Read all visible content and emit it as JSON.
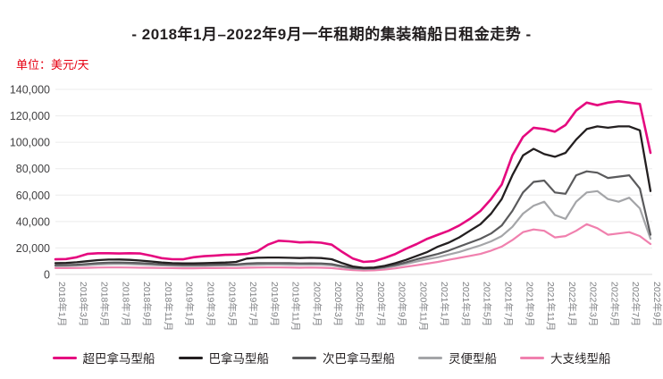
{
  "title": "- 2018年1月–2022年9月一年租期的集装箱船日租金走势 -",
  "unit_label": "单位：美元/天",
  "colors": {
    "accent_red": "#e60012",
    "title_text": "#231f20",
    "gridline": "#ebebeb",
    "axis_line": "#d9d9d9",
    "y_tick_text": "#414042",
    "x_tick_text": "#808285"
  },
  "legend": [
    "超巴拿马型船",
    "巴拿马型船",
    "次巴拿马型船",
    "灵便型船",
    "大支线型船"
  ],
  "chart_data": {
    "type": "line",
    "title": "- 2018年1月–2022年9月一年租期的集装箱船日租金走势 -",
    "ylabel": "单位：美元/天",
    "ylim": [
      0,
      140000
    ],
    "grid": true,
    "legend_position": "bottom",
    "y_ticks": [
      {
        "value": 0,
        "label": "0"
      },
      {
        "value": 20000,
        "label": "20,000"
      },
      {
        "value": 40000,
        "label": "40,000"
      },
      {
        "value": 60000,
        "label": "60,000"
      },
      {
        "value": 80000,
        "label": "80,000"
      },
      {
        "value": 100000,
        "label": "100,000"
      },
      {
        "value": 120000,
        "label": "120,000"
      },
      {
        "value": 140000,
        "label": "140,000"
      }
    ],
    "x": [
      "2018年1月",
      "2018年2月",
      "2018年3月",
      "2018年4月",
      "2018年5月",
      "2018年6月",
      "2018年7月",
      "2018年8月",
      "2018年9月",
      "2018年10月",
      "2018年11月",
      "2018年12月",
      "2019年1月",
      "2019年2月",
      "2019年3月",
      "2019年4月",
      "2019年5月",
      "2019年6月",
      "2019年7月",
      "2019年8月",
      "2019年9月",
      "2019年10月",
      "2019年11月",
      "2019年12月",
      "2020年1月",
      "2020年2月",
      "2020年3月",
      "2020年4月",
      "2020年5月",
      "2020年6月",
      "2020年7月",
      "2020年8月",
      "2020年9月",
      "2020年10月",
      "2020年11月",
      "2020年12月",
      "2021年1月",
      "2021年2月",
      "2021年3月",
      "2021年4月",
      "2021年5月",
      "2021年6月",
      "2021年7月",
      "2021年8月",
      "2021年9月",
      "2021年10月",
      "2021年11月",
      "2021年12月",
      "2022年1月",
      "2022年2月",
      "2022年3月",
      "2022年4月",
      "2022年5月",
      "2022年6月",
      "2022年7月",
      "2022年8月",
      "2022年9月"
    ],
    "x_tick_every": 2,
    "series": [
      {
        "name": "超巴拿马型船",
        "color": "#e5097f",
        "width": 2.6,
        "values": [
          11400,
          11600,
          13000,
          15500,
          16000,
          16000,
          15800,
          16000,
          15800,
          14200,
          12300,
          11500,
          11400,
          13000,
          13800,
          14300,
          14800,
          15000,
          15500,
          17500,
          22500,
          25500,
          25000,
          24200,
          24500,
          24000,
          22500,
          17000,
          12000,
          9500,
          10000,
          12500,
          15500,
          19500,
          23000,
          27000,
          30000,
          33000,
          37000,
          42000,
          48000,
          57000,
          68000,
          90000,
          104000,
          111000,
          110000,
          108000,
          113000,
          124000,
          130000,
          128000,
          130000,
          131000,
          130000,
          129000,
          92000
        ]
      },
      {
        "name": "巴拿马型船",
        "color": "#231f20",
        "width": 2.3,
        "values": [
          8500,
          8700,
          9200,
          10000,
          10800,
          11200,
          11300,
          11000,
          10500,
          9800,
          9000,
          8500,
          8300,
          8300,
          8500,
          8800,
          9000,
          9500,
          12000,
          12600,
          12800,
          12800,
          12600,
          12400,
          12600,
          12400,
          11500,
          8500,
          6000,
          5000,
          5200,
          6500,
          8500,
          11000,
          14000,
          17000,
          21000,
          24000,
          28000,
          33000,
          38000,
          46000,
          57000,
          75000,
          90000,
          95000,
          91000,
          89000,
          92000,
          102000,
          110000,
          112000,
          111000,
          112000,
          112000,
          109000,
          63000
        ]
      },
      {
        "name": "次巴拿马型船",
        "color": "#5a5a5c",
        "width": 2.2,
        "values": [
          7000,
          7100,
          7400,
          7900,
          8500,
          8900,
          9000,
          8800,
          8500,
          8100,
          7600,
          7300,
          7100,
          7100,
          7200,
          7400,
          7500,
          7600,
          8200,
          8500,
          8600,
          8600,
          8500,
          8300,
          8400,
          8300,
          7800,
          6200,
          5000,
          4500,
          4700,
          5700,
          7200,
          9200,
          11500,
          13500,
          15500,
          18000,
          21000,
          24000,
          27000,
          31000,
          37000,
          48000,
          62000,
          70000,
          71000,
          62000,
          61000,
          75000,
          78000,
          77000,
          73000,
          74000,
          75000,
          65000,
          30000
        ]
      },
      {
        "name": "灵便型船",
        "color": "#a4a5a8",
        "width": 2.2,
        "values": [
          6300,
          6400,
          6600,
          7000,
          7500,
          7800,
          7900,
          7800,
          7500,
          7200,
          6800,
          6600,
          6400,
          6400,
          6500,
          6600,
          6700,
          6800,
          7200,
          7400,
          7500,
          7500,
          7400,
          7300,
          7400,
          7300,
          6900,
          5500,
          4400,
          4000,
          4200,
          5000,
          6300,
          8000,
          9800,
          11500,
          13000,
          15000,
          17000,
          19500,
          22000,
          25000,
          29000,
          36000,
          46000,
          52000,
          55000,
          45000,
          42000,
          55000,
          62000,
          63000,
          57000,
          55000,
          58000,
          50000,
          27000
        ]
      },
      {
        "name": "大支线型船",
        "color": "#f080ae",
        "width": 2.2,
        "values": [
          4800,
          4800,
          4900,
          5000,
          5200,
          5300,
          5300,
          5200,
          5100,
          5000,
          4900,
          4800,
          4700,
          4700,
          4800,
          4800,
          4900,
          4900,
          5100,
          5200,
          5300,
          5300,
          5200,
          5100,
          5200,
          5100,
          4800,
          3900,
          3300,
          3000,
          3100,
          3700,
          4600,
          5800,
          7000,
          8200,
          9500,
          11000,
          12500,
          14000,
          15500,
          18000,
          21000,
          26000,
          32000,
          34000,
          33000,
          28000,
          29000,
          33000,
          38000,
          35000,
          30000,
          31000,
          32000,
          29000,
          23000
        ]
      }
    ]
  }
}
